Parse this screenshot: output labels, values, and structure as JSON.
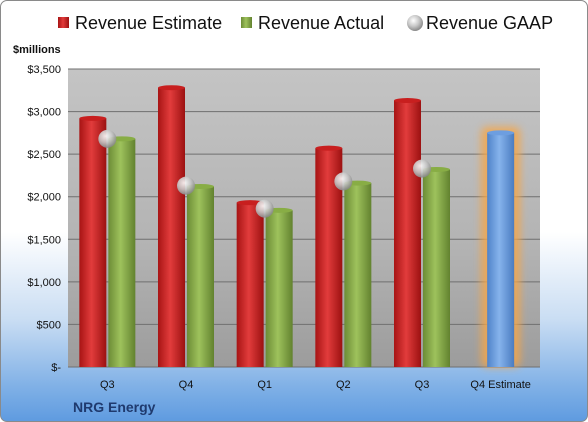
{
  "company": "NRG Energy",
  "chart_data": {
    "type": "bar",
    "ylabel": "$millions",
    "ylim": [
      0,
      3500
    ],
    "yticks": [
      0,
      500,
      1000,
      1500,
      2000,
      2500,
      3000,
      3500
    ],
    "ytick_labels": [
      "$-",
      "$500",
      "$1,000",
      "$1,500",
      "$2,000",
      "$2,500",
      "$3,000",
      "$3,500"
    ],
    "categories": [
      "Q3",
      "Q4",
      "Q1",
      "Q2",
      "Q3",
      "Q4 Estimate"
    ],
    "legend_position": "top",
    "grid": true,
    "series": [
      {
        "name": "Revenue Estimate",
        "kind": "bar",
        "color": "#d42a2a",
        "values": [
          2920,
          3280,
          1930,
          2570,
          3130,
          null
        ]
      },
      {
        "name": "Revenue Actual",
        "kind": "bar",
        "color": "#8bb04a",
        "values": [
          2680,
          2120,
          1840,
          2160,
          2320,
          2750
        ]
      },
      {
        "name": "Revenue GAAP",
        "kind": "marker",
        "color": "#b8b8b8",
        "values": [
          2680,
          2130,
          1860,
          2180,
          2330,
          null
        ]
      }
    ],
    "highlight": {
      "category": "Q4 Estimate",
      "bar_color": "#6d9ee0",
      "glow_color": "#f4a64a"
    }
  }
}
